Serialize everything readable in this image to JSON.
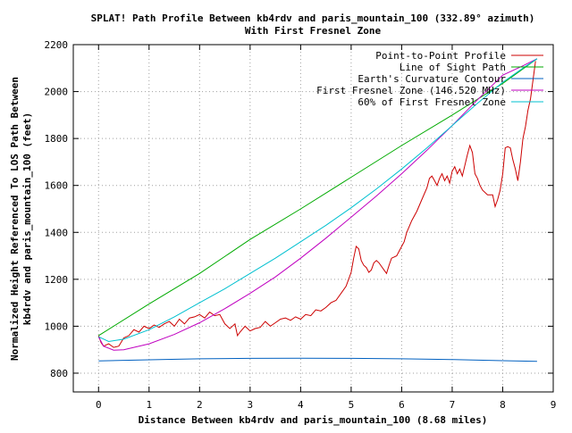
{
  "chart_data": {
    "type": "line",
    "title_line1": "SPLAT! Path Profile Between kb4rdv and paris_mountain_100 (332.89° azimuth)",
    "title_line2": "With First Fresnel Zone",
    "xlabel": "Distance Between kb4rdv and paris_mountain_100 (8.68 miles)",
    "ylabel_line1": "Normalized Height Referenced To LOS Path Between",
    "ylabel_line2": "kb4rdv and paris_mountain_100 (feet)",
    "xlim": [
      -0.5,
      9
    ],
    "ylim": [
      720,
      2200
    ],
    "xticks": [
      0,
      1,
      2,
      3,
      4,
      5,
      6,
      7,
      8,
      9
    ],
    "yticks": [
      800,
      1000,
      1200,
      1400,
      1600,
      1800,
      2000,
      2200
    ],
    "grid": true,
    "legend_position": "top-right",
    "series": [
      {
        "name": "Point-to-Point Profile",
        "color": "#cc0000",
        "points": [
          [
            0,
            960
          ],
          [
            0.05,
            930
          ],
          [
            0.1,
            915
          ],
          [
            0.2,
            925
          ],
          [
            0.3,
            910
          ],
          [
            0.4,
            915
          ],
          [
            0.5,
            950
          ],
          [
            0.6,
            960
          ],
          [
            0.7,
            985
          ],
          [
            0.8,
            975
          ],
          [
            0.9,
            1000
          ],
          [
            1.0,
            990
          ],
          [
            1.1,
            1005
          ],
          [
            1.2,
            995
          ],
          [
            1.3,
            1010
          ],
          [
            1.4,
            1020
          ],
          [
            1.5,
            1000
          ],
          [
            1.6,
            1030
          ],
          [
            1.7,
            1010
          ],
          [
            1.8,
            1035
          ],
          [
            1.9,
            1040
          ],
          [
            2.0,
            1050
          ],
          [
            2.1,
            1035
          ],
          [
            2.2,
            1060
          ],
          [
            2.3,
            1045
          ],
          [
            2.4,
            1050
          ],
          [
            2.5,
            1010
          ],
          [
            2.6,
            990
          ],
          [
            2.7,
            1010
          ],
          [
            2.75,
            960
          ],
          [
            2.8,
            975
          ],
          [
            2.9,
            1000
          ],
          [
            3.0,
            980
          ],
          [
            3.1,
            990
          ],
          [
            3.2,
            995
          ],
          [
            3.3,
            1020
          ],
          [
            3.4,
            1000
          ],
          [
            3.5,
            1015
          ],
          [
            3.6,
            1030
          ],
          [
            3.7,
            1035
          ],
          [
            3.8,
            1025
          ],
          [
            3.9,
            1040
          ],
          [
            4.0,
            1030
          ],
          [
            4.1,
            1050
          ],
          [
            4.2,
            1045
          ],
          [
            4.3,
            1070
          ],
          [
            4.4,
            1065
          ],
          [
            4.5,
            1080
          ],
          [
            4.6,
            1100
          ],
          [
            4.7,
            1110
          ],
          [
            4.8,
            1140
          ],
          [
            4.9,
            1170
          ],
          [
            5.0,
            1230
          ],
          [
            5.05,
            1290
          ],
          [
            5.1,
            1340
          ],
          [
            5.15,
            1330
          ],
          [
            5.2,
            1280
          ],
          [
            5.25,
            1260
          ],
          [
            5.3,
            1250
          ],
          [
            5.35,
            1230
          ],
          [
            5.4,
            1240
          ],
          [
            5.45,
            1270
          ],
          [
            5.5,
            1280
          ],
          [
            5.55,
            1270
          ],
          [
            5.6,
            1255
          ],
          [
            5.65,
            1240
          ],
          [
            5.7,
            1225
          ],
          [
            5.75,
            1260
          ],
          [
            5.8,
            1290
          ],
          [
            5.9,
            1300
          ],
          [
            6.0,
            1340
          ],
          [
            6.05,
            1360
          ],
          [
            6.1,
            1400
          ],
          [
            6.2,
            1450
          ],
          [
            6.3,
            1490
          ],
          [
            6.4,
            1540
          ],
          [
            6.5,
            1590
          ],
          [
            6.55,
            1630
          ],
          [
            6.6,
            1640
          ],
          [
            6.65,
            1620
          ],
          [
            6.7,
            1600
          ],
          [
            6.75,
            1630
          ],
          [
            6.8,
            1650
          ],
          [
            6.85,
            1620
          ],
          [
            6.9,
            1640
          ],
          [
            6.95,
            1610
          ],
          [
            7.0,
            1660
          ],
          [
            7.05,
            1680
          ],
          [
            7.1,
            1650
          ],
          [
            7.15,
            1670
          ],
          [
            7.2,
            1640
          ],
          [
            7.3,
            1730
          ],
          [
            7.35,
            1770
          ],
          [
            7.4,
            1740
          ],
          [
            7.45,
            1650
          ],
          [
            7.5,
            1630
          ],
          [
            7.55,
            1600
          ],
          [
            7.6,
            1580
          ],
          [
            7.7,
            1560
          ],
          [
            7.8,
            1560
          ],
          [
            7.85,
            1510
          ],
          [
            7.9,
            1540
          ],
          [
            7.95,
            1580
          ],
          [
            8.0,
            1650
          ],
          [
            8.05,
            1760
          ],
          [
            8.1,
            1765
          ],
          [
            8.15,
            1760
          ],
          [
            8.2,
            1710
          ],
          [
            8.25,
            1670
          ],
          [
            8.3,
            1620
          ],
          [
            8.35,
            1700
          ],
          [
            8.4,
            1800
          ],
          [
            8.45,
            1850
          ],
          [
            8.5,
            1920
          ],
          [
            8.55,
            1970
          ],
          [
            8.6,
            2050
          ],
          [
            8.65,
            2130
          ]
        ]
      },
      {
        "name": "Line of Sight Path",
        "color": "#00aa00",
        "points": [
          [
            0,
            960
          ],
          [
            1,
            1095
          ],
          [
            2,
            1225
          ],
          [
            3,
            1370
          ],
          [
            4,
            1500
          ],
          [
            5,
            1635
          ],
          [
            6,
            1770
          ],
          [
            7,
            1900
          ],
          [
            8,
            2035
          ],
          [
            8.68,
            2140
          ]
        ]
      },
      {
        "name": "Earth's Curvature Contour",
        "color": "#0060c0",
        "points": [
          [
            0,
            852
          ],
          [
            1,
            857
          ],
          [
            2,
            861
          ],
          [
            3,
            863
          ],
          [
            4,
            864
          ],
          [
            5,
            863
          ],
          [
            6,
            861
          ],
          [
            7,
            858
          ],
          [
            8,
            853
          ],
          [
            8.68,
            850
          ]
        ]
      },
      {
        "name": "First Fresnel Zone (146.520 MHz)",
        "color": "#c000c0",
        "points": [
          [
            0,
            955
          ],
          [
            0.1,
            915
          ],
          [
            0.3,
            898
          ],
          [
            0.5,
            900
          ],
          [
            1,
            925
          ],
          [
            1.5,
            965
          ],
          [
            2,
            1015
          ],
          [
            2.5,
            1075
          ],
          [
            3,
            1140
          ],
          [
            3.5,
            1210
          ],
          [
            4,
            1290
          ],
          [
            4.5,
            1375
          ],
          [
            5,
            1465
          ],
          [
            5.5,
            1555
          ],
          [
            6,
            1650
          ],
          [
            6.5,
            1750
          ],
          [
            7,
            1855
          ],
          [
            7.5,
            1965
          ],
          [
            8,
            2070
          ],
          [
            8.4,
            2110
          ],
          [
            8.68,
            2140
          ]
        ]
      },
      {
        "name": "60% of First Fresnel Zone",
        "color": "#00c0d0",
        "points": [
          [
            0,
            955
          ],
          [
            0.2,
            935
          ],
          [
            0.5,
            945
          ],
          [
            1,
            985
          ],
          [
            1.5,
            1040
          ],
          [
            2,
            1100
          ],
          [
            2.5,
            1160
          ],
          [
            3,
            1225
          ],
          [
            3.5,
            1290
          ],
          [
            4,
            1360
          ],
          [
            4.5,
            1430
          ],
          [
            5,
            1505
          ],
          [
            5.5,
            1585
          ],
          [
            6,
            1670
          ],
          [
            6.5,
            1760
          ],
          [
            7,
            1855
          ],
          [
            7.5,
            1950
          ],
          [
            8,
            2040
          ],
          [
            8.4,
            2100
          ],
          [
            8.68,
            2140
          ]
        ]
      }
    ]
  }
}
